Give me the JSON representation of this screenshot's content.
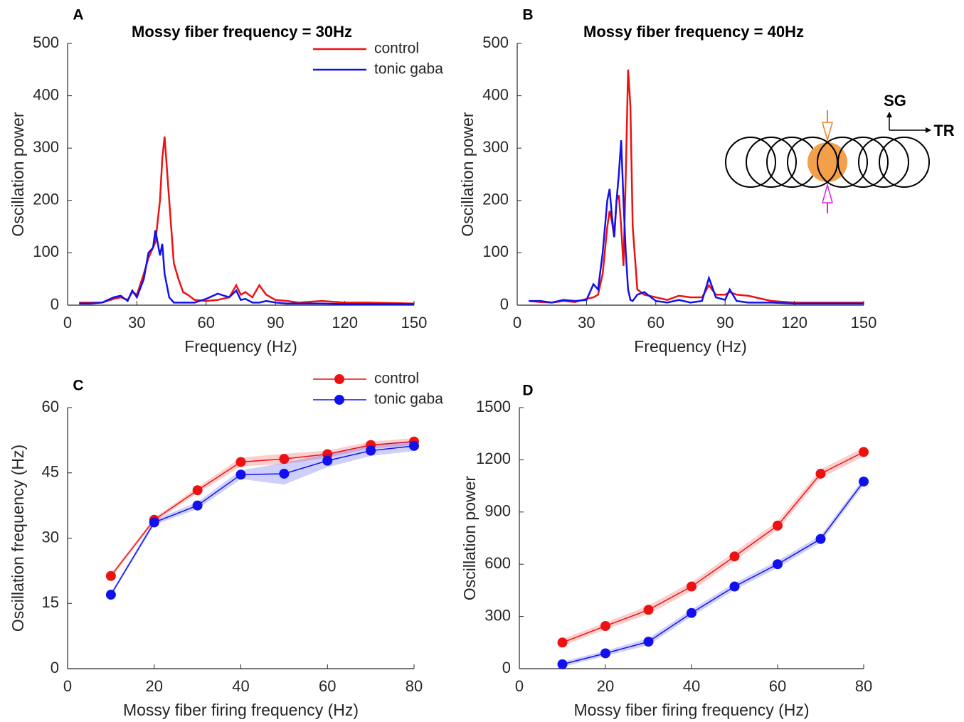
{
  "chart_data": [
    {
      "type": "line",
      "panel_label": "A",
      "title": "Mossy fiber frequency = 30Hz",
      "x_label": "Frequency (Hz)",
      "y_label": "Oscillation power",
      "x": [
        5,
        10,
        15,
        20,
        23,
        26,
        28,
        30,
        33,
        35,
        37,
        38,
        40,
        41,
        42,
        44,
        46,
        48,
        50,
        52,
        55,
        60,
        65,
        70,
        73,
        75,
        77,
        80,
        83,
        86,
        90,
        95,
        100,
        110,
        120,
        130,
        140,
        150
      ],
      "series": [
        {
          "name": "control",
          "color": "#ee1111",
          "values": [
            5,
            5,
            5,
            12,
            15,
            10,
            25,
            20,
            60,
            90,
            110,
            120,
            200,
            280,
            322,
            200,
            80,
            50,
            25,
            20,
            10,
            8,
            10,
            15,
            38,
            20,
            25,
            15,
            38,
            20,
            10,
            8,
            5,
            8,
            5,
            5,
            4,
            3
          ]
        },
        {
          "name": "tonic gaba",
          "color": "#1111ee",
          "values": [
            3,
            3,
            5,
            15,
            18,
            8,
            28,
            15,
            50,
            100,
            110,
            143,
            95,
            117,
            60,
            15,
            5,
            5,
            5,
            5,
            5,
            12,
            22,
            15,
            28,
            10,
            12,
            5,
            5,
            8,
            5,
            3,
            3,
            3,
            2,
            2,
            2,
            2
          ]
        }
      ],
      "xlim": [
        0,
        150
      ],
      "xticks": [
        0,
        30,
        60,
        90,
        120,
        150
      ],
      "ylim": [
        0,
        500
      ],
      "yticks": [
        0,
        100,
        200,
        300,
        400,
        500
      ],
      "legend": "northeast"
    },
    {
      "type": "line",
      "panel_label": "B",
      "title": "Mossy fiber frequency = 40Hz",
      "x_label": "Frequency (Hz)",
      "y_label": "Oscillation power",
      "x": [
        5,
        10,
        15,
        20,
        25,
        30,
        33,
        35,
        37,
        39,
        40,
        41,
        42,
        43,
        44,
        45,
        46,
        47,
        48,
        49,
        50,
        52,
        55,
        60,
        65,
        70,
        75,
        80,
        83,
        86,
        90,
        92,
        95,
        100,
        110,
        120,
        130,
        140,
        150
      ],
      "series": [
        {
          "name": "control",
          "color": "#ee1111",
          "values": [
            8,
            6,
            5,
            8,
            6,
            12,
            15,
            20,
            60,
            150,
            180,
            160,
            130,
            200,
            210,
            150,
            75,
            250,
            450,
            380,
            150,
            30,
            20,
            15,
            10,
            18,
            15,
            15,
            38,
            20,
            20,
            25,
            20,
            18,
            8,
            5,
            5,
            5,
            5
          ]
        },
        {
          "name": "tonic gaba",
          "color": "#1111ee",
          "values": [
            8,
            8,
            5,
            10,
            8,
            10,
            40,
            30,
            100,
            200,
            222,
            170,
            130,
            200,
            250,
            315,
            200,
            100,
            30,
            10,
            8,
            20,
            25,
            8,
            5,
            10,
            5,
            8,
            52,
            15,
            10,
            30,
            8,
            5,
            5,
            3,
            3,
            3,
            3
          ]
        }
      ],
      "xlim": [
        0,
        150
      ],
      "xticks": [
        0,
        30,
        60,
        90,
        120,
        150
      ],
      "ylim": [
        0,
        500
      ],
      "yticks": [
        0,
        100,
        200,
        300,
        400,
        500
      ],
      "annotations": [
        "SG",
        "TR"
      ]
    },
    {
      "type": "line",
      "panel_label": "C",
      "x_label": "Mossy fiber firing frequency (Hz)",
      "y_label": "Oscillation frequency (Hz)",
      "x": [
        10,
        20,
        30,
        40,
        50,
        60,
        70,
        80
      ],
      "series": [
        {
          "name": "control",
          "color": "#ee1111",
          "values": [
            21.3,
            34.2,
            41,
            47.5,
            48.2,
            49.3,
            51.4,
            52.2
          ],
          "errors": [
            0.5,
            0.5,
            0.7,
            1,
            1.2,
            0.8,
            0.8,
            0.8
          ]
        },
        {
          "name": "tonic gaba",
          "color": "#1111ee",
          "values": [
            17,
            33.6,
            37.5,
            44.6,
            44.8,
            47.8,
            50.1,
            51.2
          ],
          "errors": [
            0.5,
            0.6,
            0.8,
            1,
            2.5,
            1.5,
            1.2,
            1.2
          ]
        }
      ],
      "xlim": [
        0,
        80
      ],
      "xticks": [
        0,
        20,
        40,
        60,
        80
      ],
      "ylim": [
        0,
        60
      ],
      "yticks": [
        0,
        15,
        30,
        45,
        60
      ],
      "markers": true,
      "legend": "northoutside"
    },
    {
      "type": "line",
      "panel_label": "D",
      "x_label": "Mossy fiber firing frequency (Hz)",
      "y_label": "Oscillation power",
      "x": [
        10,
        20,
        30,
        40,
        50,
        60,
        70,
        80
      ],
      "series": [
        {
          "name": "control",
          "color": "#ee1111",
          "values": [
            150,
            245,
            338,
            472,
            645,
            822,
            1120,
            1245
          ],
          "errors": [
            20,
            20,
            25,
            25,
            25,
            25,
            25,
            25
          ]
        },
        {
          "name": "tonic gaba",
          "color": "#1111ee",
          "values": [
            25,
            88,
            155,
            320,
            472,
            600,
            745,
            1075
          ],
          "errors": [
            15,
            15,
            20,
            20,
            20,
            20,
            20,
            20
          ]
        }
      ],
      "xlim": [
        0,
        80
      ],
      "xticks": [
        0,
        20,
        40,
        60,
        80
      ],
      "ylim": [
        0,
        1500
      ],
      "yticks": [
        0,
        300,
        600,
        900,
        1200,
        1500
      ],
      "markers": true
    }
  ]
}
